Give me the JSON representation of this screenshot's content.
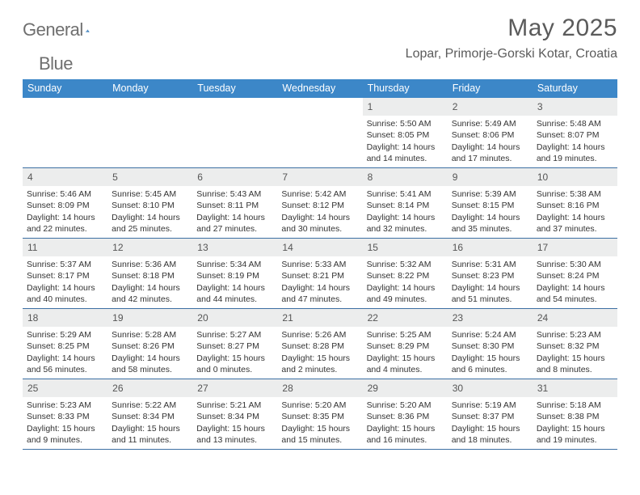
{
  "brand": {
    "word1": "General",
    "word2": "Blue"
  },
  "title": "May 2025",
  "location": "Lopar, Primorje-Gorski Kotar, Croatia",
  "colors": {
    "header_bg": "#3c87c8",
    "header_text": "#ffffff",
    "daynum_bg": "#eceded",
    "rule": "#3c6fa3",
    "title_color": "#5b5b5b",
    "logo_gray": "#6f6f6f",
    "logo_blue": "#2f77b8"
  },
  "dow": [
    "Sunday",
    "Monday",
    "Tuesday",
    "Wednesday",
    "Thursday",
    "Friday",
    "Saturday"
  ],
  "weeks": [
    [
      {
        "n": "",
        "sr": "",
        "ss": "",
        "dl": ""
      },
      {
        "n": "",
        "sr": "",
        "ss": "",
        "dl": ""
      },
      {
        "n": "",
        "sr": "",
        "ss": "",
        "dl": ""
      },
      {
        "n": "",
        "sr": "",
        "ss": "",
        "dl": ""
      },
      {
        "n": "1",
        "sr": "5:50 AM",
        "ss": "8:05 PM",
        "dl": "14 hours and 14 minutes."
      },
      {
        "n": "2",
        "sr": "5:49 AM",
        "ss": "8:06 PM",
        "dl": "14 hours and 17 minutes."
      },
      {
        "n": "3",
        "sr": "5:48 AM",
        "ss": "8:07 PM",
        "dl": "14 hours and 19 minutes."
      }
    ],
    [
      {
        "n": "4",
        "sr": "5:46 AM",
        "ss": "8:09 PM",
        "dl": "14 hours and 22 minutes."
      },
      {
        "n": "5",
        "sr": "5:45 AM",
        "ss": "8:10 PM",
        "dl": "14 hours and 25 minutes."
      },
      {
        "n": "6",
        "sr": "5:43 AM",
        "ss": "8:11 PM",
        "dl": "14 hours and 27 minutes."
      },
      {
        "n": "7",
        "sr": "5:42 AM",
        "ss": "8:12 PM",
        "dl": "14 hours and 30 minutes."
      },
      {
        "n": "8",
        "sr": "5:41 AM",
        "ss": "8:14 PM",
        "dl": "14 hours and 32 minutes."
      },
      {
        "n": "9",
        "sr": "5:39 AM",
        "ss": "8:15 PM",
        "dl": "14 hours and 35 minutes."
      },
      {
        "n": "10",
        "sr": "5:38 AM",
        "ss": "8:16 PM",
        "dl": "14 hours and 37 minutes."
      }
    ],
    [
      {
        "n": "11",
        "sr": "5:37 AM",
        "ss": "8:17 PM",
        "dl": "14 hours and 40 minutes."
      },
      {
        "n": "12",
        "sr": "5:36 AM",
        "ss": "8:18 PM",
        "dl": "14 hours and 42 minutes."
      },
      {
        "n": "13",
        "sr": "5:34 AM",
        "ss": "8:19 PM",
        "dl": "14 hours and 44 minutes."
      },
      {
        "n": "14",
        "sr": "5:33 AM",
        "ss": "8:21 PM",
        "dl": "14 hours and 47 minutes."
      },
      {
        "n": "15",
        "sr": "5:32 AM",
        "ss": "8:22 PM",
        "dl": "14 hours and 49 minutes."
      },
      {
        "n": "16",
        "sr": "5:31 AM",
        "ss": "8:23 PM",
        "dl": "14 hours and 51 minutes."
      },
      {
        "n": "17",
        "sr": "5:30 AM",
        "ss": "8:24 PM",
        "dl": "14 hours and 54 minutes."
      }
    ],
    [
      {
        "n": "18",
        "sr": "5:29 AM",
        "ss": "8:25 PM",
        "dl": "14 hours and 56 minutes."
      },
      {
        "n": "19",
        "sr": "5:28 AM",
        "ss": "8:26 PM",
        "dl": "14 hours and 58 minutes."
      },
      {
        "n": "20",
        "sr": "5:27 AM",
        "ss": "8:27 PM",
        "dl": "15 hours and 0 minutes."
      },
      {
        "n": "21",
        "sr": "5:26 AM",
        "ss": "8:28 PM",
        "dl": "15 hours and 2 minutes."
      },
      {
        "n": "22",
        "sr": "5:25 AM",
        "ss": "8:29 PM",
        "dl": "15 hours and 4 minutes."
      },
      {
        "n": "23",
        "sr": "5:24 AM",
        "ss": "8:30 PM",
        "dl": "15 hours and 6 minutes."
      },
      {
        "n": "24",
        "sr": "5:23 AM",
        "ss": "8:32 PM",
        "dl": "15 hours and 8 minutes."
      }
    ],
    [
      {
        "n": "25",
        "sr": "5:23 AM",
        "ss": "8:33 PM",
        "dl": "15 hours and 9 minutes."
      },
      {
        "n": "26",
        "sr": "5:22 AM",
        "ss": "8:34 PM",
        "dl": "15 hours and 11 minutes."
      },
      {
        "n": "27",
        "sr": "5:21 AM",
        "ss": "8:34 PM",
        "dl": "15 hours and 13 minutes."
      },
      {
        "n": "28",
        "sr": "5:20 AM",
        "ss": "8:35 PM",
        "dl": "15 hours and 15 minutes."
      },
      {
        "n": "29",
        "sr": "5:20 AM",
        "ss": "8:36 PM",
        "dl": "15 hours and 16 minutes."
      },
      {
        "n": "30",
        "sr": "5:19 AM",
        "ss": "8:37 PM",
        "dl": "15 hours and 18 minutes."
      },
      {
        "n": "31",
        "sr": "5:18 AM",
        "ss": "8:38 PM",
        "dl": "15 hours and 19 minutes."
      }
    ]
  ],
  "labels": {
    "sunrise": "Sunrise:",
    "sunset": "Sunset:",
    "daylight": "Daylight:"
  }
}
